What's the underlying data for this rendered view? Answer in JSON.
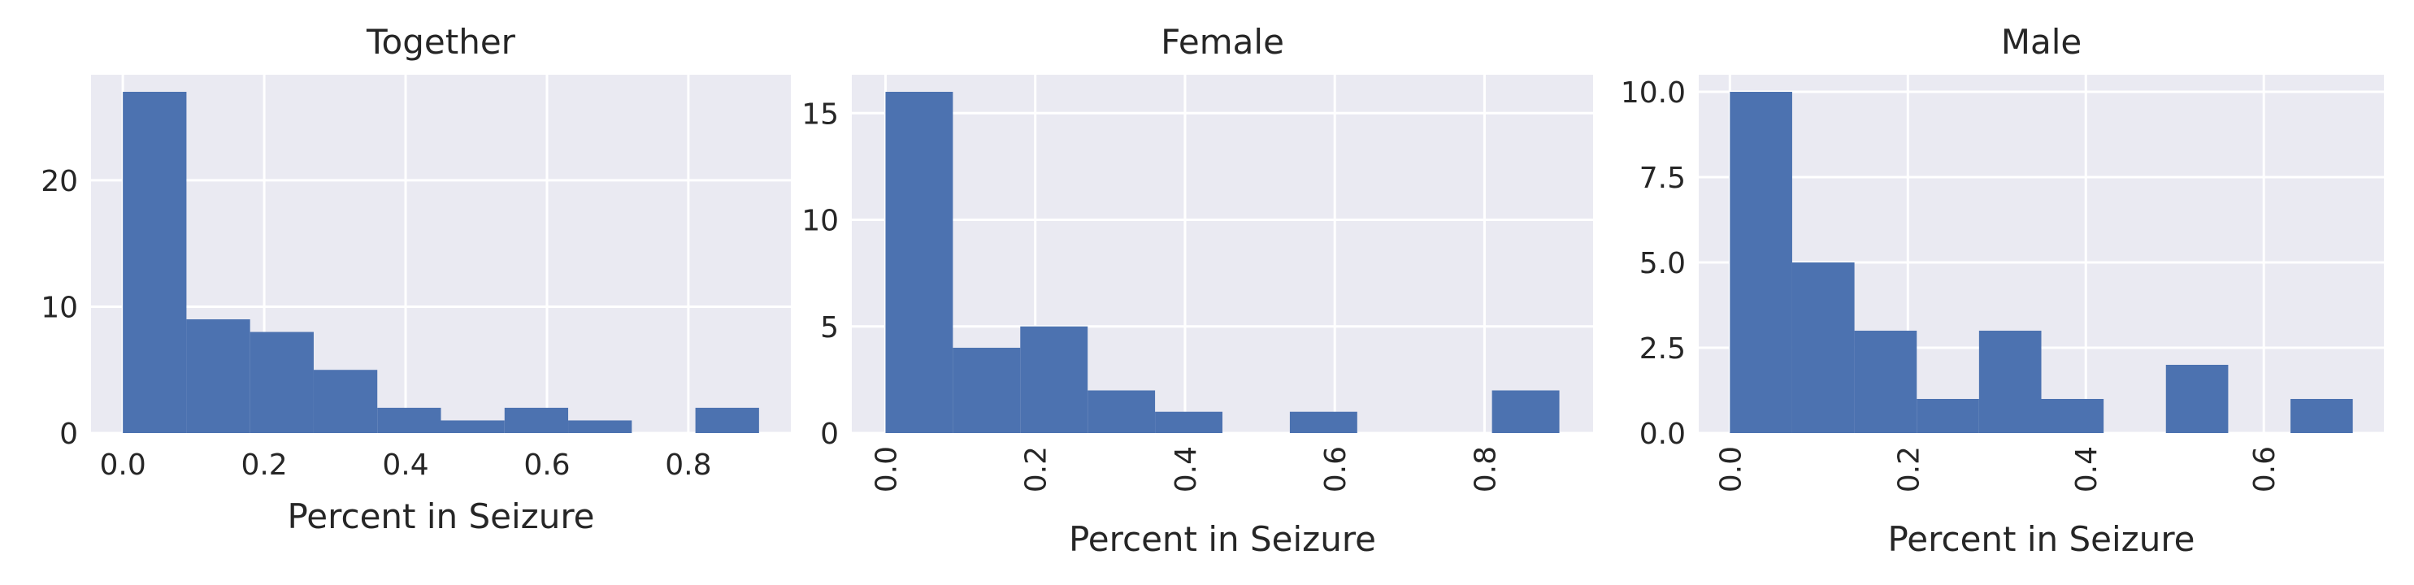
{
  "chart_data": [
    {
      "type": "bar",
      "title": "Together",
      "xlabel": "Percent in Seizure",
      "ylabel": "",
      "bins": [
        {
          "x0": 0.0,
          "x1": 0.09,
          "count": 27
        },
        {
          "x0": 0.09,
          "x1": 0.18,
          "count": 9
        },
        {
          "x0": 0.18,
          "x1": 0.27,
          "count": 8
        },
        {
          "x0": 0.27,
          "x1": 0.36,
          "count": 5
        },
        {
          "x0": 0.36,
          "x1": 0.45,
          "count": 2
        },
        {
          "x0": 0.45,
          "x1": 0.54,
          "count": 1
        },
        {
          "x0": 0.54,
          "x1": 0.63,
          "count": 2
        },
        {
          "x0": 0.63,
          "x1": 0.72,
          "count": 1
        },
        {
          "x0": 0.72,
          "x1": 0.81,
          "count": 0
        },
        {
          "x0": 0.81,
          "x1": 0.9,
          "count": 2
        }
      ],
      "xlim": [
        -0.045,
        0.945
      ],
      "ylim": [
        0,
        28.35
      ],
      "xticks": [
        "0.0",
        "0.2",
        "0.4",
        "0.6",
        "0.8"
      ],
      "xtick_values": [
        0.0,
        0.2,
        0.4,
        0.6,
        0.8
      ],
      "yticks": [
        "0",
        "10",
        "20"
      ],
      "ytick_values": [
        0,
        10,
        20
      ],
      "xtick_rotation": 0,
      "grid": true
    },
    {
      "type": "bar",
      "title": "Female",
      "xlabel": "Percent in Seizure",
      "ylabel": "",
      "bins": [
        {
          "x0": 0.0,
          "x1": 0.09,
          "count": 16
        },
        {
          "x0": 0.09,
          "x1": 0.18,
          "count": 4
        },
        {
          "x0": 0.18,
          "x1": 0.27,
          "count": 5
        },
        {
          "x0": 0.27,
          "x1": 0.36,
          "count": 2
        },
        {
          "x0": 0.36,
          "x1": 0.45,
          "count": 1
        },
        {
          "x0": 0.45,
          "x1": 0.54,
          "count": 0
        },
        {
          "x0": 0.54,
          "x1": 0.63,
          "count": 1
        },
        {
          "x0": 0.63,
          "x1": 0.72,
          "count": 0
        },
        {
          "x0": 0.72,
          "x1": 0.81,
          "count": 0
        },
        {
          "x0": 0.81,
          "x1": 0.9,
          "count": 2
        }
      ],
      "xlim": [
        -0.045,
        0.945
      ],
      "ylim": [
        0,
        16.8
      ],
      "xticks": [
        "0.0",
        "0.2",
        "0.4",
        "0.6",
        "0.8"
      ],
      "xtick_values": [
        0.0,
        0.2,
        0.4,
        0.6,
        0.8
      ],
      "yticks": [
        "0",
        "5",
        "10",
        "15"
      ],
      "ytick_values": [
        0,
        5,
        10,
        15
      ],
      "xtick_rotation": -90,
      "grid": true
    },
    {
      "type": "bar",
      "title": "Male",
      "xlabel": "Percent in Seizure",
      "ylabel": "",
      "bins": [
        {
          "x0": 0.0,
          "x1": 0.07,
          "count": 10
        },
        {
          "x0": 0.07,
          "x1": 0.14,
          "count": 5
        },
        {
          "x0": 0.14,
          "x1": 0.21,
          "count": 3
        },
        {
          "x0": 0.21,
          "x1": 0.28,
          "count": 1
        },
        {
          "x0": 0.28,
          "x1": 0.35,
          "count": 3
        },
        {
          "x0": 0.35,
          "x1": 0.42,
          "count": 1
        },
        {
          "x0": 0.42,
          "x1": 0.49,
          "count": 0
        },
        {
          "x0": 0.49,
          "x1": 0.56,
          "count": 2
        },
        {
          "x0": 0.56,
          "x1": 0.63,
          "count": 0
        },
        {
          "x0": 0.63,
          "x1": 0.7,
          "count": 1
        }
      ],
      "xlim": [
        -0.035,
        0.735
      ],
      "ylim": [
        0,
        10.5
      ],
      "xticks": [
        "0.0",
        "0.2",
        "0.4",
        "0.6"
      ],
      "xtick_values": [
        0.0,
        0.2,
        0.4,
        0.6
      ],
      "yticks": [
        "0.0",
        "2.5",
        "5.0",
        "7.5",
        "10.0"
      ],
      "ytick_values": [
        0,
        2.5,
        5,
        7.5,
        10
      ],
      "xtick_rotation": -90,
      "grid": true
    }
  ],
  "colors": {
    "bar": "#4c72b0",
    "axes_background": "#eaeaf2",
    "grid": "#ffffff",
    "text": "#262626"
  }
}
